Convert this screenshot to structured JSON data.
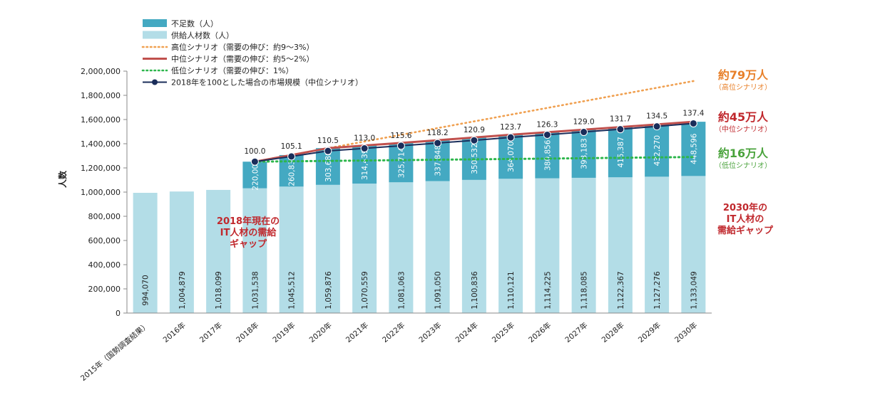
{
  "chart_data": {
    "type": "bar",
    "ylabel": "人数",
    "ylim": [
      0,
      2000000
    ],
    "yticks": [
      "0",
      "200,000",
      "400,000",
      "600,000",
      "800,000",
      "1,000,000",
      "1,200,000",
      "1,400,000",
      "1,600,000",
      "1,800,000",
      "2,000,000"
    ],
    "categories": [
      "2015年（国勢調査結果）",
      "2016年",
      "2017年",
      "2018年",
      "2019年",
      "2020年",
      "2021年",
      "2022年",
      "2023年",
      "2024年",
      "2025年",
      "2026年",
      "2027年",
      "2028年",
      "2029年",
      "2030年"
    ],
    "series": [
      {
        "name": "供給人材数（人）",
        "color": "#b3dde7",
        "values": [
          994070,
          1004879,
          1018099,
          1031538,
          1045512,
          1059876,
          1070559,
          1081063,
          1091050,
          1100836,
          1110121,
          1114225,
          1118085,
          1122367,
          1127276,
          1133049
        ],
        "labels": [
          "994,070",
          "1,004,879",
          "1,018,099",
          "1,031,538",
          "1,045,512",
          "1,059,876",
          "1,070,559",
          "1,081,063",
          "1,091,050",
          "1,100,836",
          "1,110,121",
          "1,114,225",
          "1,118,085",
          "1,122,367",
          "1,127,276",
          "1,133,049"
        ]
      },
      {
        "name": "不足数（人）",
        "color": "#44a9c2",
        "values": [
          null,
          null,
          null,
          220000,
          260835,
          303680,
          314439,
          325714,
          337848,
          350532,
          364070,
          380856,
          398183,
          415387,
          432270,
          448596
        ],
        "labels": [
          "",
          "",
          "",
          "220,000",
          "260,835",
          "303,680",
          "314,439",
          "325,714",
          "337,848",
          "350,532",
          "364,070",
          "380,856",
          "398,183",
          "415,387",
          "432,270",
          "448,596"
        ]
      }
    ],
    "lines": [
      {
        "name": "高位シナリオ（需要の伸び：約9～3%）",
        "color": "#f0a050",
        "style": "dotted",
        "x_start": "2018年",
        "x_end": "2030年",
        "y_start": 1251538,
        "y_end": 1918000
      },
      {
        "name": "中位シナリオ（需要の伸び：約5～2%）",
        "color": "#c0504d",
        "style": "solid",
        "values": [
          null,
          null,
          null,
          1251538,
          1306347,
          1363556,
          1384998,
          1406777,
          1428898,
          1451368,
          1474191,
          1495081,
          1516268,
          1537754,
          1559546,
          1581645
        ]
      },
      {
        "name": "低位シナリオ（需要の伸び：1%）",
        "color": "#2db64c",
        "style": "dotted",
        "x_start": "2018年",
        "x_end": "2030年",
        "y_start": 1251538,
        "y_end": 1290000
      },
      {
        "name": "2018年を100とした場合の市場規模（中位シナリオ）",
        "color": "#1a2d5a",
        "style": "marker",
        "values": [
          null,
          null,
          null,
          100.0,
          105.1,
          110.5,
          113.0,
          115.6,
          118.2,
          120.9,
          123.7,
          126.3,
          129.0,
          131.7,
          134.5,
          137.4
        ],
        "labels": [
          "",
          "",
          "",
          "100.0",
          "105.1",
          "110.5",
          "113.0",
          "115.6",
          "118.2",
          "120.9",
          "123.7",
          "126.3",
          "129.0",
          "131.7",
          "134.5",
          "137.4"
        ]
      }
    ],
    "legend_placement": "top-left",
    "annotations": {
      "gap2018": [
        "2018年現在の",
        "IT人材の需給",
        "ギャップ"
      ],
      "gap2030": [
        "2030年の",
        "IT人材の",
        "需給ギャップ"
      ],
      "high": {
        "value": "約79万人",
        "sub": "（高位シナリオ）",
        "color": "#e8802a"
      },
      "mid": {
        "value": "約45万人",
        "sub": "（中位シナリオ）",
        "color": "#c0282d"
      },
      "low": {
        "value": "約16万人",
        "sub": "（低位シナリオ）",
        "color": "#4aa33c"
      }
    },
    "annotation_color": "#c0282d"
  }
}
